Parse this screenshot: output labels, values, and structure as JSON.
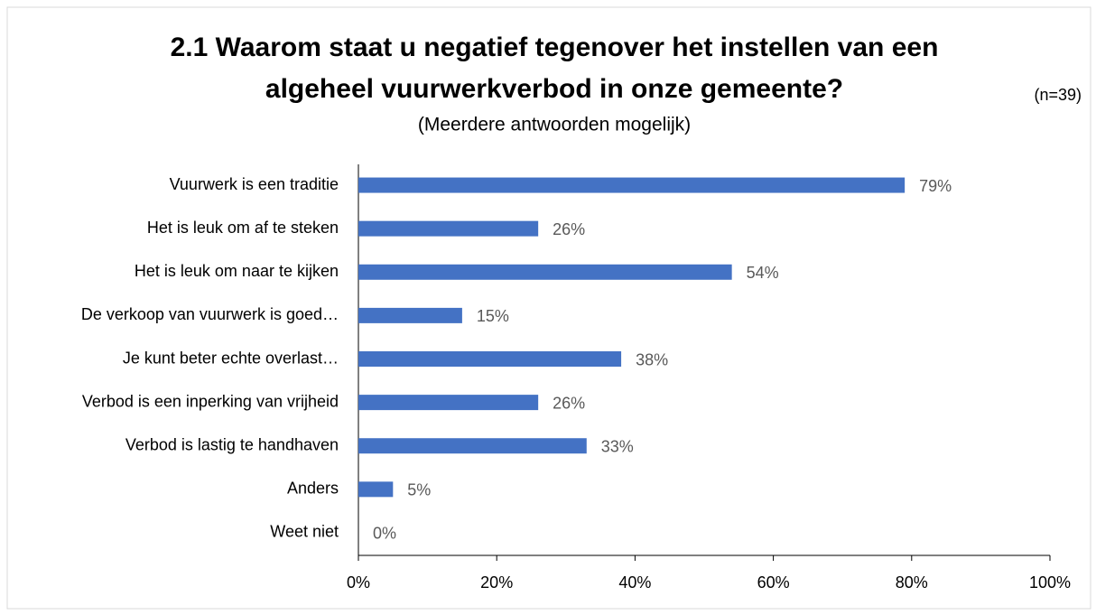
{
  "chart_data": {
    "type": "bar",
    "orientation": "horizontal",
    "title": [
      "2.1 Waarom staat u negatief tegenover het instellen van een",
      "algeheel vuurwerkverbod in onze gemeente?"
    ],
    "subtitle": "(Meerdere antwoorden mogelijk)",
    "annotation": "(n=39)",
    "categories": [
      "Vuurwerk is een traditie",
      "Het is leuk om af te steken",
      "Het is leuk om naar te kijken",
      "De verkoop van vuurwerk is goed…",
      "Je kunt beter echte overlast…",
      "Verbod is een inperking van vrijheid",
      "Verbod is lastig te handhaven",
      "Anders",
      "Weet niet"
    ],
    "values": [
      79,
      26,
      54,
      15,
      38,
      26,
      33,
      5,
      0
    ],
    "value_labels": [
      "79%",
      "26%",
      "54%",
      "15%",
      "38%",
      "26%",
      "33%",
      "5%",
      "0%"
    ],
    "color": "#4472c4",
    "xlim": [
      0,
      100
    ],
    "xticks": [
      {
        "value": 0,
        "label": "0%"
      },
      {
        "value": 20,
        "label": "20%"
      },
      {
        "value": 40,
        "label": "40%"
      },
      {
        "value": 60,
        "label": "60%"
      },
      {
        "value": 80,
        "label": "80%"
      },
      {
        "value": 100,
        "label": "100%"
      }
    ],
    "grid": false
  }
}
